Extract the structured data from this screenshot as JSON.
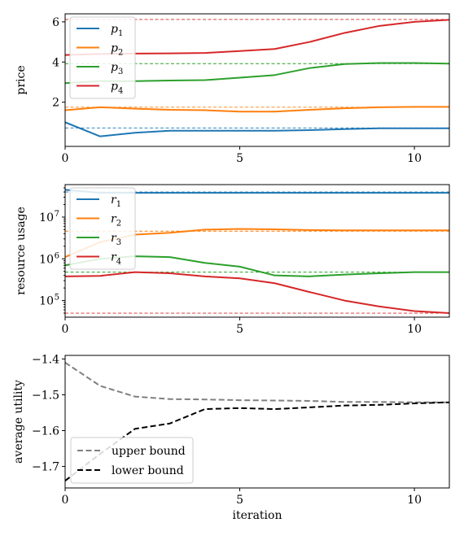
{
  "chart_data": [
    {
      "type": "line",
      "ylabel": "price",
      "xlim": [
        0,
        11
      ],
      "ylim": [
        -0.2,
        6.4
      ],
      "yscale": "linear",
      "xticks": [
        0,
        5,
        10
      ],
      "xtick_labels": [
        "0",
        "5",
        "10"
      ],
      "yticks": [
        2,
        4,
        6
      ],
      "ytick_labels": [
        "2",
        "4",
        "6"
      ],
      "legend": "top-left",
      "x": [
        0,
        1,
        2,
        3,
        4,
        5,
        6,
        7,
        8,
        9,
        10,
        11
      ],
      "series": [
        {
          "name": "p1",
          "sub": "1",
          "color": "#1f77b4",
          "values": [
            1.0,
            0.3,
            0.48,
            0.58,
            0.58,
            0.58,
            0.58,
            0.61,
            0.66,
            0.7,
            0.7,
            0.7
          ],
          "target": 0.72
        },
        {
          "name": "p2",
          "sub": "2",
          "color": "#ff7f0e",
          "values": [
            1.6,
            1.75,
            1.68,
            1.62,
            1.6,
            1.53,
            1.53,
            1.62,
            1.7,
            1.75,
            1.77,
            1.77
          ],
          "target": 1.75
        },
        {
          "name": "p3",
          "sub": "3",
          "color": "#2ca02c",
          "values": [
            2.95,
            3.05,
            3.05,
            3.08,
            3.1,
            3.22,
            3.35,
            3.7,
            3.9,
            3.95,
            3.95,
            3.92
          ],
          "target": 3.92
        },
        {
          "name": "p4",
          "sub": "4",
          "color": "#d62728",
          "values": [
            4.35,
            4.4,
            4.42,
            4.43,
            4.45,
            4.55,
            4.65,
            5.0,
            5.45,
            5.8,
            6.0,
            6.1
          ],
          "target": 6.12
        }
      ]
    },
    {
      "type": "line",
      "ylabel": "resource usage",
      "xlim": [
        0,
        11
      ],
      "ylim": [
        40000,
        60000000
      ],
      "yscale": "log",
      "xticks": [
        0,
        5,
        10
      ],
      "xtick_labels": [
        "0",
        "5",
        "10"
      ],
      "yticks": [
        100000,
        1000000,
        10000000
      ],
      "ytick_labels": [
        "10",
        "10",
        "10"
      ],
      "ytick_exps": [
        "5",
        "6",
        "7"
      ],
      "legend": "top-left",
      "x": [
        0,
        1,
        2,
        3,
        4,
        5,
        6,
        7,
        8,
        9,
        10,
        11
      ],
      "series": [
        {
          "name": "r1",
          "sub": "1",
          "color": "#1f77b4",
          "values": [
            45000000,
            38000000,
            38000000,
            38000000,
            38000000,
            38000000,
            38000000,
            38000000,
            38000000,
            38000000,
            38000000,
            38000000
          ],
          "target": 40000000
        },
        {
          "name": "r2",
          "sub": "2",
          "color": "#ff7f0e",
          "values": [
            1100000,
            2500000,
            3800000,
            4200000,
            5000000,
            5200000,
            5100000,
            4900000,
            4800000,
            4800000,
            4800000,
            4800000
          ],
          "target": 4600000
        },
        {
          "name": "r3",
          "sub": "3",
          "color": "#2ca02c",
          "values": [
            700000,
            1000000,
            1150000,
            1100000,
            800000,
            650000,
            400000,
            380000,
            420000,
            450000,
            480000,
            480000
          ],
          "target": 480000
        },
        {
          "name": "r4",
          "sub": "4",
          "color": "#d62728",
          "values": [
            380000,
            390000,
            480000,
            450000,
            380000,
            340000,
            260000,
            160000,
            100000,
            72000,
            56000,
            50000
          ],
          "target": 50000
        }
      ]
    },
    {
      "type": "line",
      "ylabel": "average utility",
      "xlabel": "iteration",
      "xlim": [
        0,
        11
      ],
      "ylim": [
        -1.76,
        -1.39
      ],
      "yscale": "linear",
      "xticks": [
        0,
        5,
        10
      ],
      "xtick_labels": [
        "0",
        "5",
        "10"
      ],
      "yticks": [
        -1.7,
        -1.6,
        -1.5,
        -1.4
      ],
      "ytick_labels": [
        "−1.7",
        "−1.6",
        "−1.5",
        "−1.4"
      ],
      "legend": "bottom-left",
      "x": [
        0,
        1,
        2,
        3,
        4,
        5,
        6,
        7,
        8,
        9,
        10,
        11
      ],
      "series": [
        {
          "name": "upper bound",
          "color": "#808080",
          "values": [
            -1.41,
            -1.475,
            -1.505,
            -1.512,
            -1.513,
            -1.515,
            -1.516,
            -1.517,
            -1.52,
            -1.52,
            -1.521,
            -1.521
          ]
        },
        {
          "name": "lower bound",
          "color": "#000000",
          "values": [
            -1.74,
            -1.665,
            -1.595,
            -1.58,
            -1.54,
            -1.537,
            -1.54,
            -1.535,
            -1.53,
            -1.528,
            -1.524,
            -1.521
          ]
        }
      ]
    }
  ]
}
